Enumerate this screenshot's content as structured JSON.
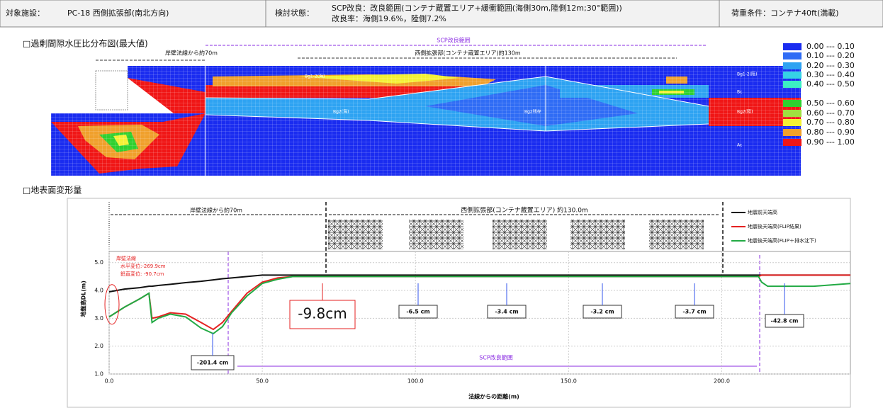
{
  "header": {
    "facility_label": "対象施設：",
    "facility": "PC-18 西側拡張部(南北方向)",
    "state_label": "検討状態：",
    "state_line1": "SCP改良：改良範囲(コンテナ蔵置エリア+緩衝範囲(海側30m,陸側12m;30°範囲))",
    "state_line2": "改良率：海側19.6%，陸側7.2%",
    "load": "荷重条件：コンテナ40ft(満載)"
  },
  "contour": {
    "title": "□過剰間隙水圧比分布図(最大値)",
    "labels": [
      "SCP改良範囲",
      "岸壁法線から約70m",
      "西側拡張部(コンテナ蔵置エリア)約130m",
      "Bg1-2(海)",
      "Bg2(海)",
      "Bg2残存",
      "Bg2(陸)",
      "Bc",
      "Ac",
      "Bg1-2(陸)"
    ],
    "legend": [
      {
        "label": "0.00 --- 0.10",
        "color": "#1a2cf0"
      },
      {
        "label": "0.10 --- 0.20",
        "color": "#2f6cf5"
      },
      {
        "label": "0.20 --- 0.30",
        "color": "#2ea3f2"
      },
      {
        "label": "0.30 --- 0.40",
        "color": "#35d3e6"
      },
      {
        "label": "0.40 --- 0.50",
        "color": "#3cf0c3"
      },
      {
        "label": "0.50 --- 0.60",
        "color": "#2fd02f"
      },
      {
        "label": "0.60 --- 0.70",
        "color": "#a0e040"
      },
      {
        "label": "0.70 --- 0.80",
        "color": "#f4f035"
      },
      {
        "label": "0.80 --- 0.90",
        "color": "#f0a02c"
      },
      {
        "label": "0.90 --- 1.00",
        "color": "#f01616"
      }
    ]
  },
  "chart_data": {
    "type": "line",
    "title": "□地表面変形量",
    "x_label": "法線からの距離(m)",
    "y_label": "地盤高DL(m)",
    "x": [
      0,
      5,
      10,
      13,
      14,
      16,
      20,
      25,
      30,
      34,
      37,
      40,
      45,
      50,
      55,
      60,
      70,
      100,
      150,
      200,
      212,
      213,
      215,
      230,
      242
    ],
    "series": [
      {
        "name": "地震前天端高",
        "color": "#111111",
        "values": [
          3.95,
          4.05,
          4.1,
          4.15,
          4.15,
          4.18,
          4.22,
          4.28,
          4.33,
          4.38,
          4.42,
          4.45,
          4.5,
          4.55,
          4.55,
          4.55,
          4.55,
          4.55,
          4.55,
          4.55,
          4.55,
          4.55,
          4.55,
          4.55,
          4.55
        ]
      },
      {
        "name": "地震後天端高(FLIP結果)",
        "color": "#e52222",
        "values": [
          3.05,
          3.4,
          3.7,
          3.9,
          3.0,
          3.05,
          3.2,
          3.15,
          2.85,
          2.6,
          2.85,
          3.25,
          3.9,
          4.3,
          4.45,
          4.5,
          4.5,
          4.5,
          4.5,
          4.5,
          4.5,
          4.55,
          4.55,
          4.55,
          4.55
        ]
      },
      {
        "name": "地震後天端高(FLIP＋排水沈下)",
        "color": "#22aa44",
        "values": [
          3.05,
          3.4,
          3.7,
          3.9,
          2.85,
          3.0,
          3.15,
          3.05,
          2.65,
          2.45,
          2.7,
          3.2,
          3.8,
          4.25,
          4.4,
          4.5,
          4.5,
          4.5,
          4.5,
          4.5,
          4.5,
          4.3,
          4.15,
          4.15,
          4.25
        ]
      }
    ],
    "xlim": [
      0,
      242
    ],
    "ylim": [
      1,
      5.4
    ],
    "xticks": [
      {
        "value": 0,
        "label": "0.0"
      },
      {
        "value": 50,
        "label": "50.0"
      },
      {
        "value": 100,
        "label": "100.0"
      },
      {
        "value": 150,
        "label": "150.0"
      },
      {
        "value": 200,
        "label": "200.0"
      }
    ],
    "yticks": [
      {
        "value": 1,
        "label": "1.0"
      },
      {
        "value": 2,
        "label": "2.0"
      },
      {
        "value": 3,
        "label": "3.0"
      },
      {
        "value": 4,
        "label": "4.0"
      },
      {
        "value": 5,
        "label": "5.0"
      }
    ],
    "grid": true,
    "legend": "right",
    "annotations": [
      "-201.4 cm",
      "-9.8cm",
      "-6.5 cm",
      "-3.4 cm",
      "-3.2 cm",
      "-3.7 cm",
      "-42.8 cm",
      "岸壁法線から約70m",
      "西側拡張部(コンテナ蔵置エリア) 約130.0m",
      "SCP改良範囲",
      "岸壁法線",
      "水平変位:-269.9cm",
      "鉛直変位: -90.7cm"
    ]
  }
}
